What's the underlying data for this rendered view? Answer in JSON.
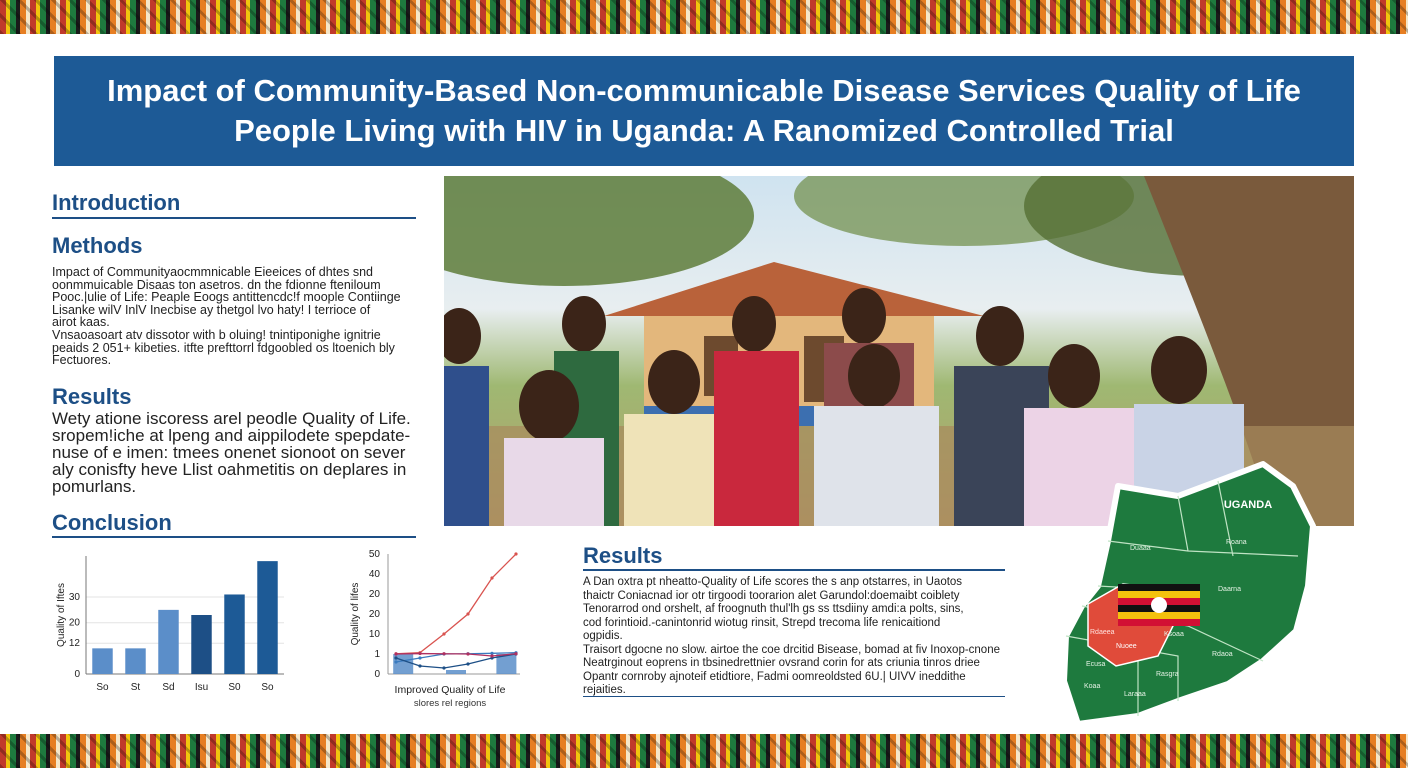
{
  "title": {
    "line1": "Impact of Community-Based Non-communicable Disease Services Quality of Life",
    "line2": "People Living with HIV in Uganda: A Ranomized Controlled Trial"
  },
  "left": {
    "introduction": "Introduction",
    "methods": "Methods",
    "methods_lines": [
      "Impact of Communityaocmmnicable Eieeices of dhtes snd",
      "oonmmuicable Disaas ton asetros. dn the fdionne fteniloum",
      "Pooc.|ulie of Life: Peaple Eoogs antittencdc!f moople Contiinge",
      "Lisanke wilV InlV Inecbise ay thetgol lvo haty! I terrioce of",
      "airot kaas.",
      "Vnsaoasoart atv dissotor with b oluing! tnintiponighe ignitrie",
      "peaids 2 051+ kibeties. itfte prefttorrl fdgoobled os ltoenich bly",
      "Fectuores."
    ],
    "results": "Results",
    "results_lines": [
      "Wety atione iscoress arel peodle Quality of Life.",
      "sropem!iche at lpeng and aippilodete spepdate-",
      "nuse of e imen: tmees onenet sionoot on sever",
      "aly conisfty heve Llist oahmetitis on deplares in",
      "pomurlans."
    ],
    "conclusion": "Conclusion"
  },
  "bar_chart": {
    "chart_data": {
      "type": "bar",
      "categories": [
        "So",
        "St",
        "Sd",
        "Isu",
        "S0",
        "So"
      ],
      "values": [
        10,
        10,
        25,
        23,
        31,
        44
      ],
      "colors": [
        "#5b8ec9",
        "#5b8ec9",
        "#5b8ec9",
        "#1d4f86",
        "#1d5a96",
        "#1d5a96"
      ],
      "ylabel": "Quality of Iftes",
      "ytick_labels": [
        "0",
        "12",
        "20",
        "30"
      ],
      "ytick_values": [
        0,
        12,
        20,
        30
      ],
      "ylim": [
        0,
        46
      ]
    }
  },
  "line_chart": {
    "chart_data": {
      "type": "line",
      "ylabel": "Quality of lifes",
      "ytick_labels": [
        "0",
        "1",
        "10",
        "20",
        "20",
        "40",
        "50"
      ],
      "caption_line1": "Improved Quality of Life",
      "caption_line2": "slores rel regions",
      "series": [
        {
          "color": "#d9534f",
          "x": [
            0,
            1,
            2,
            3,
            4,
            5
          ],
          "y": [
            1.1,
            1.6,
            10,
            20,
            38,
            50
          ]
        },
        {
          "color": "#3a7bbf",
          "x": [
            0,
            1,
            2,
            3,
            4,
            5
          ],
          "y": [
            0.6,
            0.8,
            1.0,
            1.1,
            1.3,
            1.6
          ]
        },
        {
          "color": "#1d4f86",
          "x": [
            0,
            1,
            2,
            3,
            4,
            5
          ],
          "y": [
            0.8,
            0.4,
            0.3,
            0.5,
            0.8,
            1.0
          ]
        },
        {
          "color": "#b03060",
          "x": [
            0,
            1,
            2,
            3,
            4,
            5
          ],
          "y": [
            1.0,
            1.2,
            1.1,
            1.0,
            0.9,
            1.1
          ]
        }
      ],
      "bars": [
        {
          "x": 0.3,
          "value": 1.0
        },
        {
          "x": 2.5,
          "value": 0.2
        },
        {
          "x": 4.6,
          "value": 1.0
        }
      ],
      "bar_color": "#5b8ec9"
    }
  },
  "results2": {
    "heading": "Results",
    "lines": [
      "A Dan oxtra pt nheatto-Quality of Life scores the s anp otstarres, in Uaotos",
      "thaictr  Coniacnad ior otr tirgoodi toorarion alet Garundol:doemaibt coiblety",
      "Tenorarrod ond orshelt, af froognuth thul'lh gs ss ttsdiiny amdi:a polts, sins,",
      "cod forintioid.-canintonrid wiotug rinsit, Strepd trecoma life renicaitiond",
      "ogpidis.",
      "Traisort dgocne no slow. airtoe the coe drcitid Bisease, bomad at fiv Inoxop-cnone",
      "Neatrginout eoprens in tbsinedrettnier ovsrand corin for ats criunia tinros driee",
      "Opantr cornroby ajnoteif etidtiore, Fadmi oomreoldsted 6U.| UIVV ineddithe",
      "rejaities."
    ]
  },
  "map": {
    "title": "UGANDA",
    "regions": [
      "Duaaa",
      "Roana",
      "Daarna",
      "Rdaeea",
      "Ksoaa",
      "Nuoee",
      "Rdaoa",
      "Ecusa",
      "Rasgra",
      "Koaa",
      "Laraaa"
    ]
  }
}
